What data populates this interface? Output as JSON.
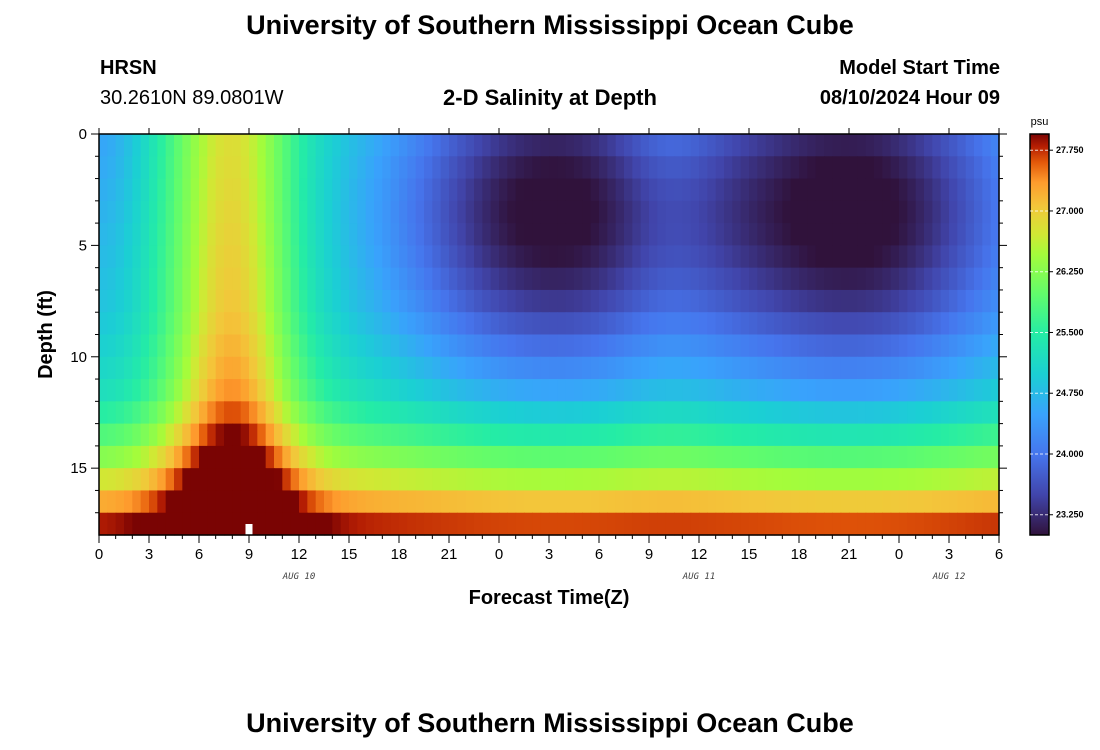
{
  "header": {
    "title": "University of Southern Mississippi Ocean Cube",
    "station": "HRSN",
    "coords": "30.2610N  89.0801W",
    "subtitle": "2-D Salinity at Depth",
    "start_label": "Model Start Time",
    "start_value": "08/10/2024 Hour 09"
  },
  "footer": {
    "title": "University of Southern Mississippi Ocean Cube"
  },
  "chart_data": {
    "type": "heatmap",
    "title": "2-D Salinity at Depth",
    "xlabel": "Forecast Time(Z)",
    "ylabel": "Depth (ft)",
    "x_ticks": [
      "0",
      "3",
      "6",
      "9",
      "12",
      "15",
      "18",
      "21",
      "0",
      "3",
      "6",
      "9",
      "12",
      "15",
      "18",
      "21",
      "0",
      "3",
      "6"
    ],
    "date_labels": [
      {
        "label": "AUG 10",
        "at_hour": 12
      },
      {
        "label": "AUG 11",
        "at_hour": 36
      },
      {
        "label": "AUG 12",
        "at_hour": 51
      }
    ],
    "x_range_hours": [
      0,
      54
    ],
    "y_ticks": [
      "0",
      "5",
      "10",
      "15"
    ],
    "ylim": [
      0,
      18
    ],
    "y_inverted": true,
    "colorbar": {
      "unit": "psu",
      "min": 23.0,
      "max": 27.95,
      "ticks": [
        "27.750",
        "27.000",
        "26.250",
        "25.500",
        "24.750",
        "24.000",
        "23.250"
      ]
    },
    "marker_hour": 9,
    "salinity_features": [
      {
        "feature": "high-salinity column near surface",
        "hours": [
          5,
          11
        ],
        "value": 27.3
      },
      {
        "feature": "low-salinity minimum",
        "hour": 2.5,
        "depth": 3.5,
        "value": 23.2
      },
      {
        "feature": "mid-period salinity band",
        "hours": [
          7,
          11
        ],
        "value": 25.4
      },
      {
        "feature": "low-salinity minimum",
        "hour": 21.5,
        "depth": 3.5,
        "value": 23.1
      },
      {
        "feature": "bottom high-salinity layer",
        "depth": [
          15,
          18
        ],
        "value": 27.6
      }
    ]
  }
}
